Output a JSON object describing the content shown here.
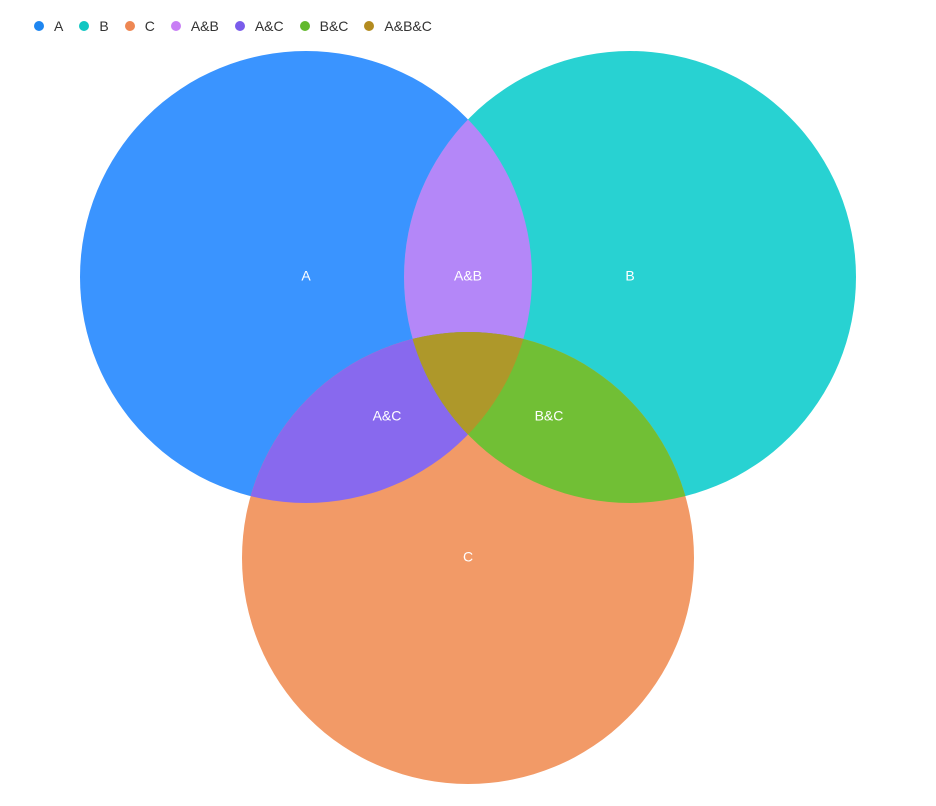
{
  "chart_data": {
    "type": "venn",
    "sets": [
      {
        "name": "A",
        "color": "#3A94FF"
      },
      {
        "name": "B",
        "color": "#28D2D2"
      },
      {
        "name": "C",
        "color": "#F29A67"
      }
    ],
    "intersections": [
      {
        "name": "A&B",
        "sets": [
          "A",
          "B"
        ],
        "color": "#B487F8"
      },
      {
        "name": "A&C",
        "sets": [
          "A",
          "C"
        ],
        "color": "#8869EE"
      },
      {
        "name": "B&C",
        "sets": [
          "B",
          "C"
        ],
        "color": "#71BF35"
      },
      {
        "name": "A&B&C",
        "sets": [
          "A",
          "B",
          "C"
        ],
        "color": "#AE982A"
      }
    ],
    "legend": [
      {
        "label": "A",
        "color": "#1E86F0"
      },
      {
        "label": "B",
        "color": "#0FC6C2"
      },
      {
        "label": "C",
        "color": "#EE8753"
      },
      {
        "label": "A&B",
        "color": "#C87FF5"
      },
      {
        "label": "A&C",
        "color": "#7A5CEB"
      },
      {
        "label": "B&C",
        "color": "#62B92D"
      },
      {
        "label": "A&B&C",
        "color": "#B38B1F"
      }
    ],
    "legend_position": "top-left",
    "region_labels": [
      "A",
      "B",
      "C",
      "A&B",
      "A&C",
      "B&C"
    ]
  }
}
